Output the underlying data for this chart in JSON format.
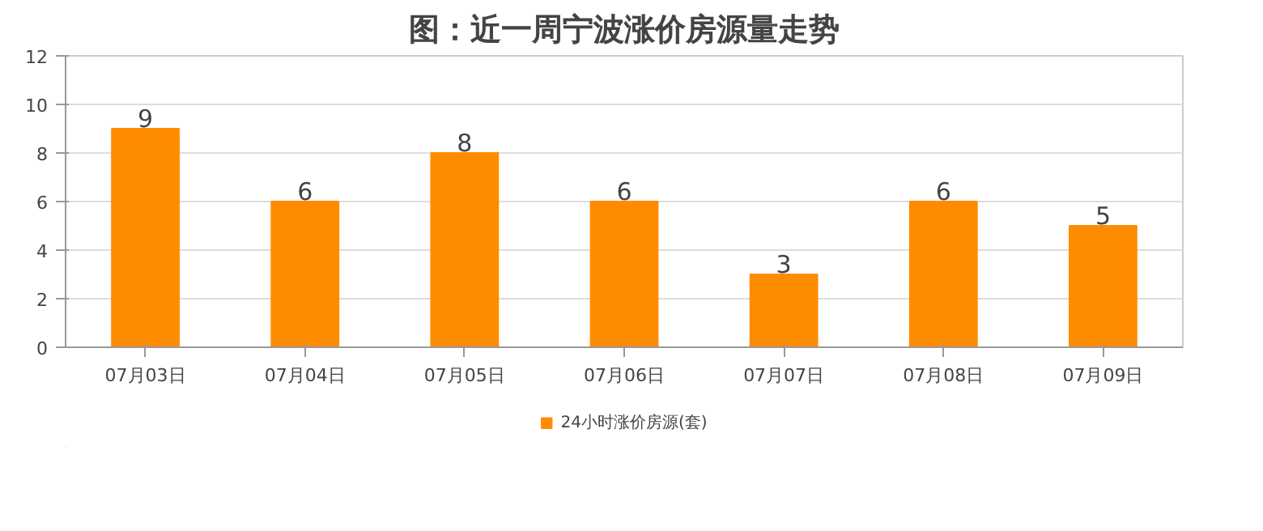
{
  "chart_data": {
    "type": "bar",
    "title": "图：近一周宁波涨价房源量走势",
    "categories": [
      "07月03日",
      "07月04日",
      "07月05日",
      "07月06日",
      "07月07日",
      "07月08日",
      "07月09日"
    ],
    "series": [
      {
        "name": "24小时涨价房源(套)",
        "color": "#ff8c00",
        "values": [
          9,
          6,
          8,
          6,
          3,
          6,
          5
        ]
      }
    ],
    "ylim": [
      0,
      12
    ],
    "yticks": [
      0,
      2,
      4,
      6,
      8,
      10,
      12
    ],
    "grid": "y",
    "legend": "bottom",
    "data_labels": true
  }
}
